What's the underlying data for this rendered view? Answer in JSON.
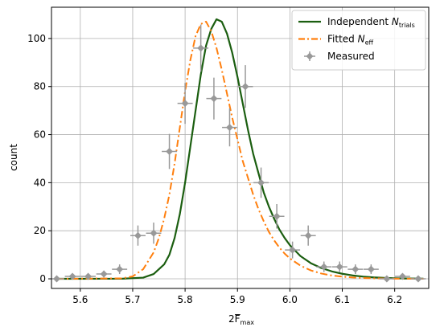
{
  "chart_data": {
    "type": "line",
    "title": "",
    "xlabel": {
      "main": "2F",
      "subscript": "max"
    },
    "ylabel": "count",
    "xlim": [
      5.545,
      6.265
    ],
    "ylim": [
      -4,
      113
    ],
    "xticks": [
      5.6,
      5.7,
      5.8,
      5.9,
      6.0,
      6.1,
      6.2
    ],
    "xtick_labels": [
      "5.6",
      "5.7",
      "5.8",
      "5.9",
      "6.0",
      "6.1",
      "6.2"
    ],
    "yticks": [
      0,
      20,
      40,
      60,
      80,
      100
    ],
    "ytick_labels": [
      "0",
      "20",
      "40",
      "60",
      "80",
      "100"
    ],
    "grid": true,
    "legend_position": "top-right",
    "series": [
      {
        "name": "Independent N_trials",
        "legend_main": "Independent ",
        "legend_symbol": "N",
        "legend_sub": "trials",
        "kind": "line",
        "style": "solid",
        "color": "#1b5e10",
        "x": [
          5.555,
          5.68,
          5.72,
          5.74,
          5.76,
          5.77,
          5.78,
          5.79,
          5.8,
          5.81,
          5.82,
          5.83,
          5.84,
          5.85,
          5.86,
          5.87,
          5.88,
          5.89,
          5.9,
          5.91,
          5.92,
          5.93,
          5.94,
          5.95,
          5.96,
          5.97,
          5.98,
          5.99,
          6.0,
          6.02,
          6.04,
          6.06,
          6.08,
          6.1,
          6.12,
          6.14,
          6.16,
          6.18,
          6.2,
          6.22,
          6.255
        ],
        "y": [
          0,
          0.05,
          0.5,
          2,
          6,
          10,
          17,
          27,
          40,
          55,
          70,
          85,
          97,
          104,
          108,
          107,
          102,
          94,
          84,
          73,
          62,
          52,
          44,
          36,
          30,
          25,
          20.5,
          17,
          14,
          9.5,
          6.5,
          4.5,
          3.1,
          2.1,
          1.4,
          0.9,
          0.6,
          0.4,
          0.25,
          0.15,
          0.05
        ]
      },
      {
        "name": "Fitted N_eff",
        "legend_main": "Fitted ",
        "legend_symbol": "N",
        "legend_sub": "eff",
        "kind": "line",
        "style": "dashdot",
        "color": "#ff7f0e",
        "x": [
          5.555,
          5.68,
          5.7,
          5.72,
          5.74,
          5.75,
          5.76,
          5.77,
          5.78,
          5.79,
          5.8,
          5.81,
          5.82,
          5.83,
          5.84,
          5.85,
          5.86,
          5.87,
          5.88,
          5.89,
          5.9,
          5.91,
          5.92,
          5.93,
          5.94,
          5.95,
          5.96,
          5.97,
          5.98,
          5.99,
          6.0,
          6.02,
          6.04,
          6.06,
          6.08,
          6.1,
          6.12,
          6.14,
          6.16,
          6.18,
          6.2,
          6.22,
          6.255
        ],
        "y": [
          0,
          0.2,
          1,
          4,
          11,
          17,
          25,
          35,
          48,
          63,
          78,
          91,
          101,
          106,
          107,
          103,
          96,
          87,
          77,
          67,
          58,
          49,
          42,
          35,
          29,
          24,
          19.5,
          16,
          13,
          10.5,
          8.5,
          5.5,
          3.5,
          2.2,
          1.4,
          0.9,
          0.55,
          0.35,
          0.2,
          0.12,
          0.07,
          0.04,
          0.02
        ]
      },
      {
        "name": "Measured",
        "legend_main": "Measured",
        "kind": "errorbar",
        "color": "#999999",
        "x_err": 0.0145,
        "points": [
          {
            "x": 5.555,
            "y": 0,
            "yerr": 0.5
          },
          {
            "x": 5.585,
            "y": 1,
            "yerr": 1
          },
          {
            "x": 5.615,
            "y": 1,
            "yerr": 1
          },
          {
            "x": 5.645,
            "y": 2,
            "yerr": 1.4
          },
          {
            "x": 5.675,
            "y": 4,
            "yerr": 2
          },
          {
            "x": 5.71,
            "y": 18,
            "yerr": 4.2
          },
          {
            "x": 5.74,
            "y": 19,
            "yerr": 4.4
          },
          {
            "x": 5.77,
            "y": 53,
            "yerr": 7.3
          },
          {
            "x": 5.8,
            "y": 73,
            "yerr": 8.5
          },
          {
            "x": 5.83,
            "y": 96,
            "yerr": 9.8
          },
          {
            "x": 5.855,
            "y": 75,
            "yerr": 8.7
          },
          {
            "x": 5.885,
            "y": 63,
            "yerr": 7.9
          },
          {
            "x": 5.915,
            "y": 80,
            "yerr": 8.9
          },
          {
            "x": 5.945,
            "y": 40,
            "yerr": 6.3
          },
          {
            "x": 5.975,
            "y": 26,
            "yerr": 5.1
          },
          {
            "x": 6.005,
            "y": 12,
            "yerr": 3.5
          },
          {
            "x": 6.035,
            "y": 18,
            "yerr": 4.2
          },
          {
            "x": 6.065,
            "y": 5,
            "yerr": 2.2
          },
          {
            "x": 6.095,
            "y": 5,
            "yerr": 2.2
          },
          {
            "x": 6.125,
            "y": 4,
            "yerr": 2
          },
          {
            "x": 6.155,
            "y": 4,
            "yerr": 2
          },
          {
            "x": 6.185,
            "y": 0,
            "yerr": 0.5
          },
          {
            "x": 6.215,
            "y": 1,
            "yerr": 1
          },
          {
            "x": 6.245,
            "y": 0,
            "yerr": 0.5
          }
        ]
      }
    ]
  }
}
